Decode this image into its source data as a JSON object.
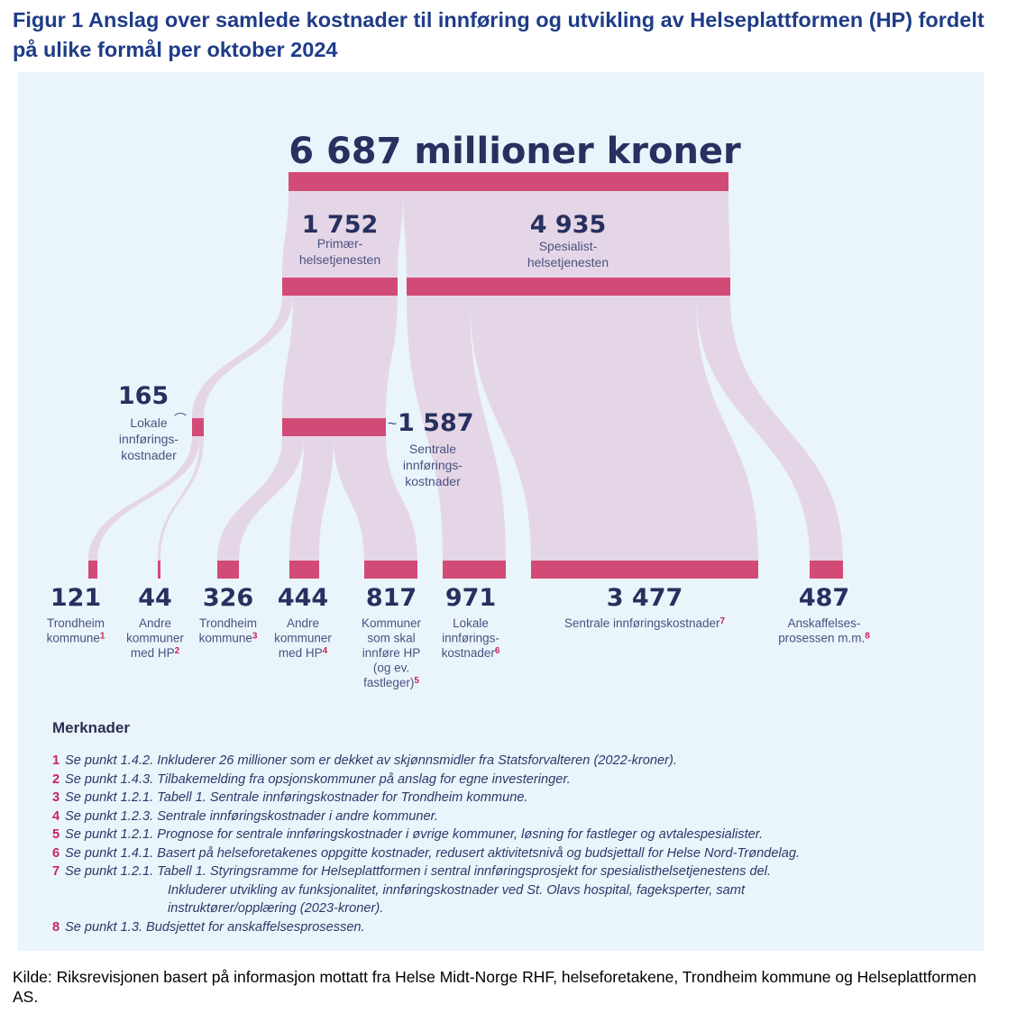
{
  "title": "Figur 1 Anslag over samlede kostnader til innføring og utvikling av Helseplattformen (HP) fordelt på ulike formål per oktober 2024",
  "colors": {
    "bar": "#d24b77",
    "flow": "#e5d6e7",
    "panel": "#eaf4fb",
    "title": "#1f3c88",
    "number": "#27305f",
    "footnote": "#c7245a"
  },
  "chart_data": {
    "type": "sankey",
    "total": {
      "value": "6 687 millioner kroner"
    },
    "nodes": [
      {
        "id": "primary",
        "value": "1 752",
        "label_lines": [
          "Primær-",
          "helsetjenesten"
        ]
      },
      {
        "id": "specialist",
        "value": "4 935",
        "label_lines": [
          "Spesialist-",
          "helsetjenesten"
        ]
      },
      {
        "id": "local_primary",
        "value": "165",
        "label_lines": [
          "Lokale",
          "innførings-",
          "kostnader"
        ]
      },
      {
        "id": "central_primary",
        "value": "1 587",
        "label_lines": [
          "Sentrale",
          "innførings-",
          "kostnader"
        ]
      }
    ],
    "leaves": [
      {
        "value": "121",
        "label_lines": [
          "Trondheim",
          "kommune"
        ],
        "note": "1"
      },
      {
        "value": "44",
        "label_lines": [
          "Andre",
          "kommuner",
          "med HP"
        ],
        "note": "2"
      },
      {
        "value": "326",
        "label_lines": [
          "Trondheim",
          "kommune"
        ],
        "note": "3"
      },
      {
        "value": "444",
        "label_lines": [
          "Andre",
          "kommuner",
          "med HP"
        ],
        "note": "4"
      },
      {
        "value": "817",
        "label_lines": [
          "Kommuner",
          "som skal",
          "innføre HP",
          "(og ev.",
          "fastleger)"
        ],
        "note": "5"
      },
      {
        "value": "971",
        "label_lines": [
          "Lokale",
          "innførings-",
          "kostnader"
        ],
        "note": "6"
      },
      {
        "value": "3 477",
        "label_lines": [
          "Sentrale innføringskostnader"
        ],
        "note": "7"
      },
      {
        "value": "487",
        "label_lines": [
          "Anskaffelses-",
          "prosessen m.m."
        ],
        "note": "8"
      }
    ],
    "links": [
      {
        "from": "total",
        "to": "primary",
        "value": 1752
      },
      {
        "from": "total",
        "to": "specialist",
        "value": 4935
      },
      {
        "from": "primary",
        "to": "local_primary",
        "value": 165
      },
      {
        "from": "primary",
        "to": "central_primary",
        "value": 1587
      },
      {
        "from": "local_primary",
        "to": "121",
        "value": 121
      },
      {
        "from": "local_primary",
        "to": "44",
        "value": 44
      },
      {
        "from": "central_primary",
        "to": "326",
        "value": 326
      },
      {
        "from": "central_primary",
        "to": "444",
        "value": 444
      },
      {
        "from": "central_primary",
        "to": "817",
        "value": 817
      },
      {
        "from": "specialist",
        "to": "971",
        "value": 971
      },
      {
        "from": "specialist",
        "to": "3 477",
        "value": 3477
      },
      {
        "from": "specialist",
        "to": "487",
        "value": 487
      }
    ]
  },
  "notes": {
    "heading": "Merknader",
    "items": [
      {
        "n": "1",
        "lines": [
          "Se punkt 1.4.2. Inkluderer 26 millioner som er dekket av skjønnsmidler fra Statsforvalteren (2022-kroner)."
        ]
      },
      {
        "n": "2",
        "lines": [
          "Se punkt 1.4.3. Tilbakemelding fra opsjonskommuner på anslag for egne investeringer."
        ]
      },
      {
        "n": "3",
        "lines": [
          "Se punkt 1.2.1. Tabell 1. Sentrale innføringskostnader for Trondheim kommune."
        ]
      },
      {
        "n": "4",
        "lines": [
          "Se punkt 1.2.3. Sentrale innføringskostnader i andre kommuner."
        ]
      },
      {
        "n": "5",
        "lines": [
          "Se punkt 1.2.1. Prognose for sentrale innføringskostnader i øvrige kommuner, løsning for fastleger og avtalespesialister."
        ]
      },
      {
        "n": "6",
        "lines": [
          "Se punkt 1.4.1. Basert på helseforetakenes oppgitte kostnader, redusert aktivitetsnivå og budsjettall for Helse Nord-Trøndelag."
        ]
      },
      {
        "n": "7",
        "lines": [
          "Se punkt 1.2.1. Tabell 1. Styringsramme for Helseplattformen i sentral innføringsprosjekt for spesialisthelsetjenestens del.",
          "Inkluderer utvikling av funksjonalitet, innføringskostnader ved St. Olavs hospital, fageksperter, samt",
          "instruktører/opplæring (2023-kroner)."
        ]
      },
      {
        "n": "8",
        "lines": [
          "Se punkt 1.3. Budsjettet for anskaffelsesprosessen."
        ]
      }
    ]
  },
  "source": "Kilde: Riksrevisjonen basert på informasjon mottatt fra Helse Midt-Norge RHF, helseforetakene, Trondheim kommune og Helseplattformen AS."
}
